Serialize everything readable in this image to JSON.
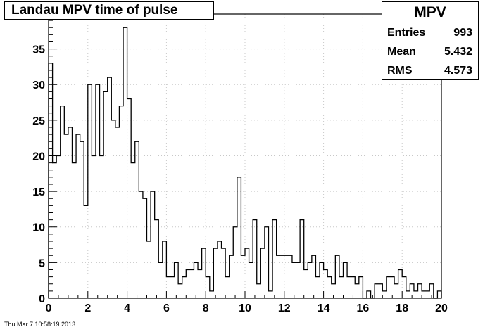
{
  "title": "Landau MPV time of pulse",
  "stats": {
    "name": "MPV",
    "entries_label": "Entries",
    "entries_value": "993",
    "mean_label": "Mean",
    "mean_value": "5.432",
    "rms_label": "RMS",
    "rms_value": "4.573"
  },
  "footer": "Thu Mar  7 10:58:19 2013",
  "chart_data": {
    "type": "bar",
    "title": "Landau MPV time of pulse",
    "xlabel": "",
    "ylabel": "",
    "xlim": [
      0,
      20
    ],
    "ylim": [
      0,
      39.9
    ],
    "bin_width": 0.2,
    "x_ticks": [
      0,
      2,
      4,
      6,
      8,
      10,
      12,
      14,
      16,
      18,
      20
    ],
    "y_ticks": [
      0,
      5,
      10,
      15,
      20,
      25,
      30,
      35
    ],
    "grid": true,
    "legend": "none",
    "values": [
      33,
      19,
      20,
      27,
      23,
      24,
      19,
      23,
      22,
      13,
      30,
      20,
      30,
      20,
      29,
      31,
      25,
      24,
      27,
      38,
      28,
      19,
      22,
      15,
      14,
      8,
      15,
      11,
      5,
      8,
      3,
      3,
      5,
      2,
      3,
      4,
      4,
      5,
      4,
      7,
      3,
      1,
      7,
      8,
      7,
      3,
      6,
      10,
      17,
      6,
      7,
      5,
      11,
      2,
      7,
      10,
      1,
      11,
      6,
      6,
      6,
      6,
      5,
      5,
      11,
      4,
      5,
      6,
      3,
      5,
      4,
      3,
      2,
      6,
      3,
      5,
      3,
      3,
      2,
      3,
      0,
      1,
      0,
      2,
      2,
      1,
      3,
      3,
      2,
      4,
      3,
      1,
      2,
      1,
      2,
      1,
      1,
      2,
      0,
      1
    ]
  }
}
